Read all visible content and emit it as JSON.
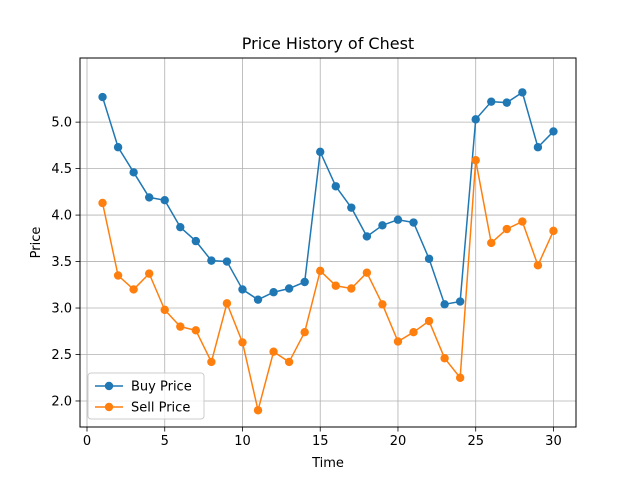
{
  "chart_data": {
    "type": "line",
    "title": "Price History of Chest",
    "xlabel": "Time",
    "ylabel": "Price",
    "xlim": [
      -0.45,
      31.45
    ],
    "ylim": [
      1.72,
      5.69
    ],
    "x_ticks": [
      0,
      5,
      10,
      15,
      20,
      25,
      30
    ],
    "x_tick_labels": [
      "0",
      "5",
      "10",
      "15",
      "20",
      "25",
      "30"
    ],
    "y_ticks": [
      2.0,
      2.5,
      3.0,
      3.5,
      4.0,
      4.5,
      5.0
    ],
    "y_tick_labels": [
      "2.0",
      "2.5",
      "3.0",
      "3.5",
      "4.0",
      "4.5",
      "5.0"
    ],
    "grid": true,
    "legend_position": "lower-left",
    "x": [
      1,
      2,
      3,
      4,
      5,
      6,
      7,
      8,
      9,
      10,
      11,
      12,
      13,
      14,
      15,
      16,
      17,
      18,
      19,
      20,
      21,
      22,
      23,
      24,
      25,
      26,
      27,
      28,
      29,
      30
    ],
    "series": [
      {
        "name": "Buy Price",
        "color": "#1f77b4",
        "values": [
          5.27,
          4.73,
          4.46,
          4.19,
          4.16,
          3.87,
          3.72,
          3.51,
          3.5,
          3.2,
          3.09,
          3.17,
          3.21,
          3.28,
          4.68,
          4.31,
          4.08,
          3.77,
          3.89,
          3.95,
          3.92,
          3.53,
          3.04,
          3.07,
          5.03,
          5.22,
          5.21,
          5.32,
          4.73,
          4.9
        ]
      },
      {
        "name": "Sell Price",
        "color": "#ff7f0e",
        "values": [
          4.13,
          3.35,
          3.2,
          3.37,
          2.98,
          2.8,
          2.76,
          2.42,
          3.05,
          2.63,
          1.9,
          2.53,
          2.42,
          2.74,
          3.4,
          3.24,
          3.21,
          3.38,
          3.04,
          2.64,
          2.74,
          2.86,
          2.46,
          2.25,
          4.59,
          3.7,
          3.85,
          3.93,
          3.46,
          3.83
        ]
      }
    ]
  }
}
